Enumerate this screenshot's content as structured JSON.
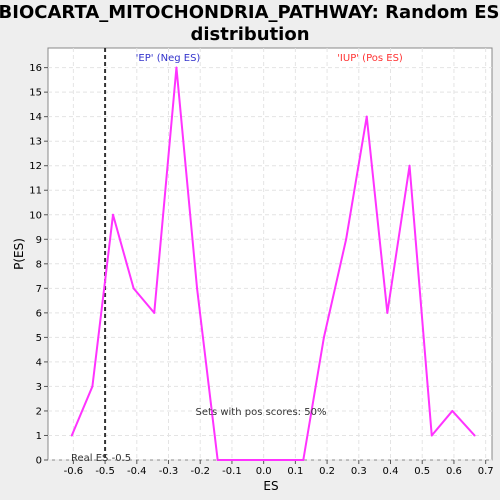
{
  "chart_data": {
    "type": "line",
    "title_line1": "BIOCARTA_MITOCHONDRIA_PATHWAY: Random ES",
    "title_line2": "distribution",
    "xlabel": "ES",
    "ylabel": "P(ES)",
    "xlim": [
      -0.68,
      0.72
    ],
    "ylim": [
      0,
      16.8
    ],
    "x_ticks": [
      "-0.6",
      "-0.5",
      "-0.4",
      "-0.3",
      "-0.2",
      "-0.1",
      "0.0",
      "0.1",
      "0.2",
      "0.3",
      "0.4",
      "0.5",
      "0.6",
      "0.7"
    ],
    "x_tick_values": [
      -0.6,
      -0.5,
      -0.4,
      -0.3,
      -0.2,
      -0.1,
      0.0,
      0.1,
      0.2,
      0.3,
      0.4,
      0.5,
      0.6,
      0.7
    ],
    "y_ticks": [
      "0",
      "1",
      "2",
      "3",
      "4",
      "5",
      "6",
      "7",
      "8",
      "9",
      "10",
      "11",
      "12",
      "13",
      "14",
      "15",
      "16"
    ],
    "grid": true,
    "series": [
      {
        "color": "#ff33ff",
        "x": [
          -0.605,
          -0.54,
          -0.475,
          -0.41,
          -0.345,
          -0.275,
          -0.21,
          -0.145,
          -0.08,
          -0.015,
          0.05,
          0.125,
          0.19,
          0.26,
          0.325,
          0.39,
          0.46,
          0.53,
          0.595,
          0.665
        ],
        "values": [
          1,
          3,
          10,
          7,
          6,
          16,
          7,
          0,
          0,
          0,
          0,
          0,
          5,
          9,
          14,
          6,
          12,
          1,
          2,
          1
        ]
      }
    ],
    "real_es": -0.5,
    "real_es_label": "Real ES -0.5",
    "neg_label": "'EP' (Neg ES)",
    "pos_label": "'IUP' (Pos ES)",
    "pos_scores_label": "Sets with pos scores: 50%",
    "colors": {
      "line": "#ff33ff",
      "neg": "#3333cc",
      "pos": "#ff3333",
      "grid": "#e4e4e4",
      "plot_bg": "#ffffff",
      "page_bg": "#eeeeee"
    }
  }
}
